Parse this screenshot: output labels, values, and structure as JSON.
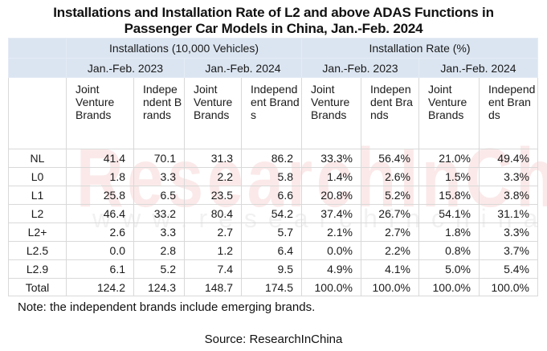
{
  "chart_data": {
    "type": "table",
    "title": "Installations and Installation Rate of L2 and above ADAS Functions in Passenger Car Models in China, Jan.-Feb. 2024",
    "title_lines": [
      "Installations and Installation Rate of L2 and above ADAS Functions in",
      "Passenger Car Models in China, Jan.-Feb. 2024"
    ],
    "group_headers": [
      "Installations (10,000 Vehicles)",
      "Installation Rate (%)"
    ],
    "period_headers": [
      "Jan.-Feb. 2023",
      "Jan.-Feb. 2024",
      "Jan.-Feb. 2023",
      "Jan.-Feb. 2024"
    ],
    "columns": [
      "Joint Venture Brands",
      "Independent Brands",
      "Joint Venture Brands",
      "Independent Brands",
      "Joint Venture Brands",
      "Independent Brands",
      "Joint Venture Brands",
      "Independent Brands"
    ],
    "rows": [
      {
        "label": "NL",
        "values": [
          "41.4",
          "70.1",
          "31.3",
          "86.2",
          "33.3%",
          "56.4%",
          "21.0%",
          "49.4%"
        ]
      },
      {
        "label": "L0",
        "values": [
          "1.8",
          "3.3",
          "2.2",
          "5.8",
          "1.4%",
          "2.6%",
          "1.5%",
          "3.3%"
        ]
      },
      {
        "label": "L1",
        "values": [
          "25.8",
          "6.5",
          "23.5",
          "6.6",
          "20.8%",
          "5.2%",
          "15.8%",
          "3.8%"
        ]
      },
      {
        "label": "L2",
        "values": [
          "46.4",
          "33.2",
          "80.4",
          "54.2",
          "37.4%",
          "26.7%",
          "54.1%",
          "31.1%"
        ]
      },
      {
        "label": "L2+",
        "values": [
          "2.6",
          "3.3",
          "2.7",
          "5.7",
          "2.1%",
          "2.7%",
          "1.8%",
          "3.3%"
        ]
      },
      {
        "label": "L2.5",
        "values": [
          "0.0",
          "2.8",
          "1.2",
          "6.4",
          "0.0%",
          "2.2%",
          "0.8%",
          "3.7%"
        ]
      },
      {
        "label": "L2.9",
        "values": [
          "6.1",
          "5.2",
          "7.4",
          "9.5",
          "4.9%",
          "4.1%",
          "5.0%",
          "5.4%"
        ]
      },
      {
        "label": "Total",
        "values": [
          "124.2",
          "124.3",
          "148.7",
          "174.5",
          "100.0%",
          "100.0%",
          "100.0%",
          "100.0%"
        ]
      }
    ],
    "note": "Note: the independent brands include emerging brands.",
    "source": "Source: ResearchInChina"
  },
  "watermark": {
    "brand": "ResearchInChina",
    "url": "www.researchinchina.com"
  },
  "colors": {
    "header_bg": "#dbe5f1",
    "grid": "#d9d9d9",
    "watermark": "#dc2828"
  }
}
